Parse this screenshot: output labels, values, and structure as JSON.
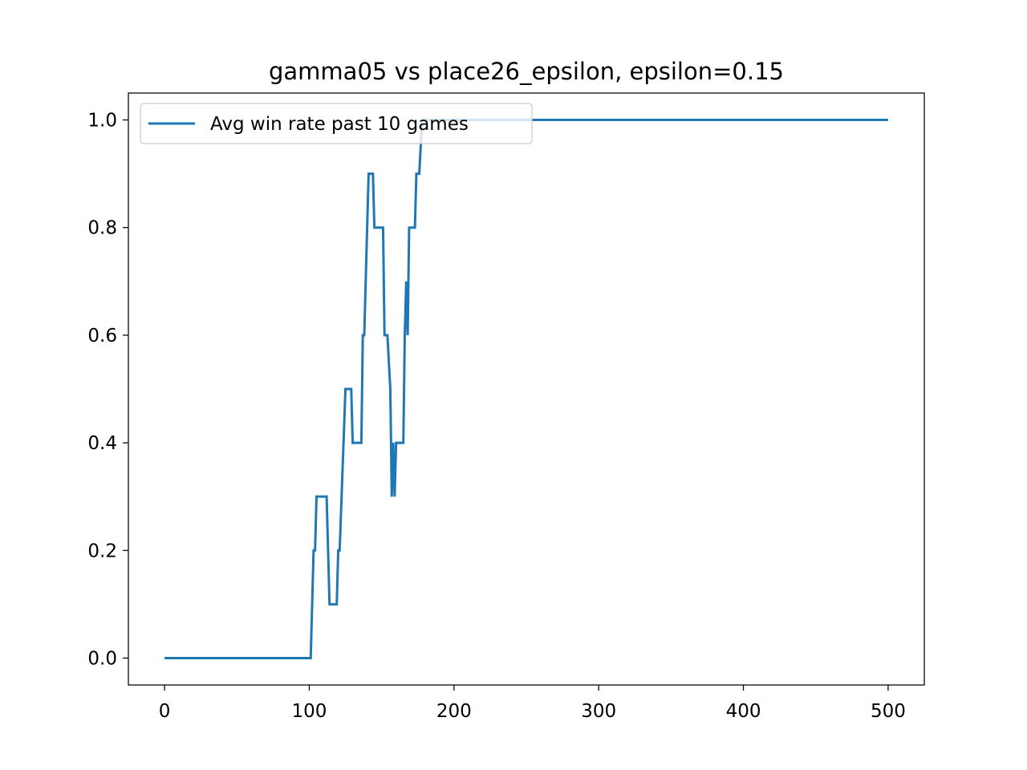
{
  "chart_data": {
    "type": "line",
    "title": "gamma05 vs place26_epsilon, epsilon=0.15",
    "xlabel": "",
    "ylabel": "",
    "xlim": [
      -25,
      525
    ],
    "ylim": [
      -0.05,
      1.05
    ],
    "xticks": [
      0,
      100,
      200,
      300,
      400,
      500
    ],
    "xtick_labels": [
      "0",
      "100",
      "200",
      "300",
      "400",
      "500"
    ],
    "yticks": [
      0.0,
      0.2,
      0.4,
      0.6,
      0.8,
      1.0
    ],
    "ytick_labels": [
      "0.0",
      "0.2",
      "0.4",
      "0.6",
      "0.8",
      "1.0"
    ],
    "grid": false,
    "legend_position": "upper-left",
    "series": [
      {
        "name": "Avg win rate past 10 games",
        "color": "#1f77b4",
        "x": [
          0,
          101,
          103,
          104,
          105,
          111,
          112,
          113,
          114,
          119,
          120,
          121,
          125,
          126,
          129,
          130,
          135,
          136,
          137,
          138,
          141,
          142,
          143,
          144,
          145,
          147,
          148,
          149,
          150,
          151,
          152,
          153,
          154,
          156,
          157,
          158,
          159,
          160,
          161,
          162,
          165,
          166,
          167,
          168,
          169,
          170,
          173,
          174,
          175,
          176,
          178,
          179,
          180,
          200,
          300,
          400,
          500
        ],
        "y": [
          0.0,
          0.0,
          0.2,
          0.2,
          0.3,
          0.3,
          0.3,
          0.2,
          0.1,
          0.1,
          0.2,
          0.2,
          0.5,
          0.5,
          0.5,
          0.4,
          0.4,
          0.4,
          0.6,
          0.6,
          0.9,
          0.9,
          0.9,
          0.9,
          0.8,
          0.8,
          0.8,
          0.8,
          0.8,
          0.8,
          0.6,
          0.6,
          0.6,
          0.5,
          0.3,
          0.4,
          0.3,
          0.4,
          0.4,
          0.4,
          0.4,
          0.6,
          0.7,
          0.6,
          0.8,
          0.8,
          0.8,
          0.9,
          0.9,
          0.9,
          1.0,
          1.0,
          1.0,
          1.0,
          1.0,
          1.0,
          1.0
        ]
      }
    ]
  }
}
